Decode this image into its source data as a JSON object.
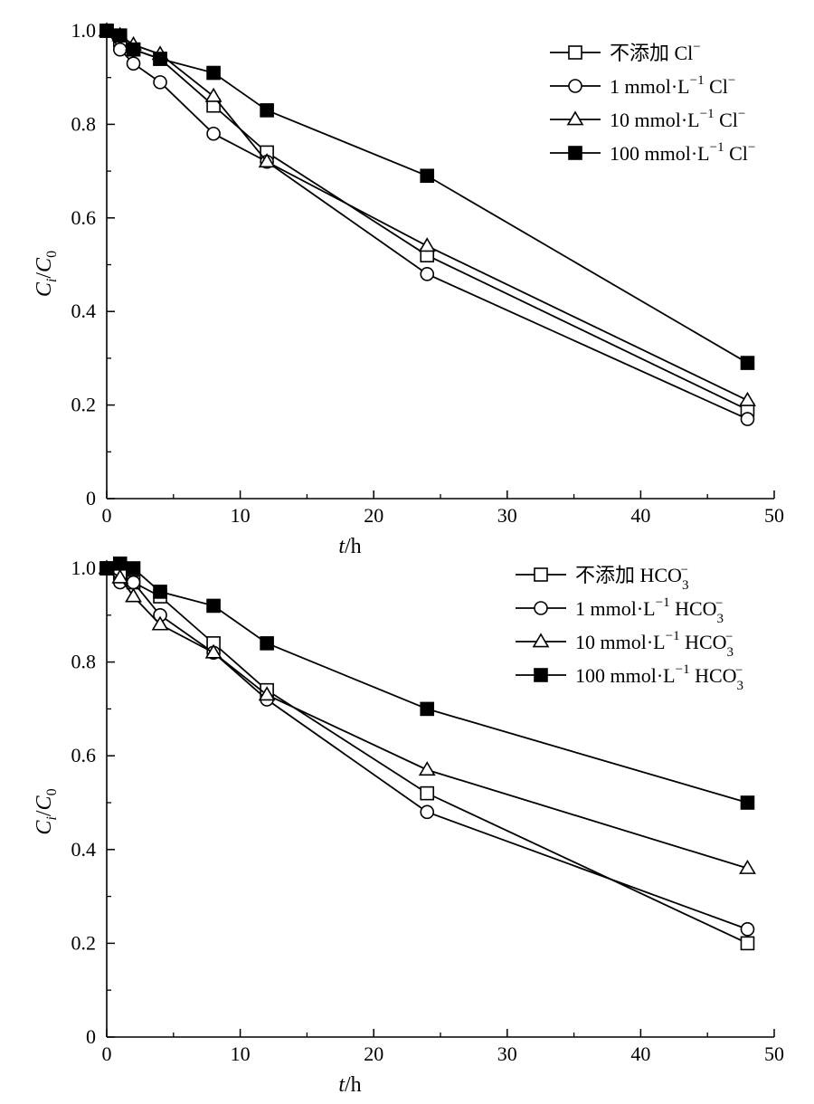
{
  "chart_data": [
    {
      "type": "line",
      "title": "",
      "xlabel": "t/h",
      "xlabel_italic": "t",
      "xlabel_unit": "/h",
      "ylabel": "Ci/C0",
      "xlim": [
        0,
        50
      ],
      "ylim": [
        0,
        1.0
      ],
      "xticks": [
        "0",
        "10",
        "20",
        "30",
        "40",
        "50"
      ],
      "yticks": [
        "0",
        "0.2",
        "0.4",
        "0.6",
        "0.8",
        "1.0"
      ],
      "legend_position": "top-right",
      "series": [
        {
          "name": "不添加 Cl⁻",
          "legend_text": "不添加 Cl",
          "ion_suffix": "−",
          "marker": "open-square",
          "x": [
            0,
            1,
            2,
            4,
            8,
            12,
            24,
            48
          ],
          "y": [
            1.0,
            0.98,
            0.96,
            0.94,
            0.84,
            0.74,
            0.52,
            0.19
          ]
        },
        {
          "name": "1 mmol·L⁻¹ Cl⁻",
          "legend_text": "1 mmol·L",
          "exp": "−1",
          "ion": " Cl",
          "ion_suffix": "−",
          "marker": "open-circle",
          "x": [
            0,
            1,
            2,
            4,
            8,
            12,
            24,
            48
          ],
          "y": [
            1.0,
            0.96,
            0.93,
            0.89,
            0.78,
            0.72,
            0.48,
            0.17
          ]
        },
        {
          "name": "10 mmol·L⁻¹ Cl⁻",
          "legend_text": "10 mmol·L",
          "exp": "−1",
          "ion": " Cl",
          "ion_suffix": "−",
          "marker": "open-triangle",
          "x": [
            0,
            1,
            2,
            4,
            8,
            12,
            24,
            48
          ],
          "y": [
            1.0,
            0.99,
            0.97,
            0.95,
            0.86,
            0.72,
            0.54,
            0.21
          ]
        },
        {
          "name": "100 mmol·L⁻¹ Cl⁻",
          "legend_text": "100 mmol·L",
          "exp": "−1",
          "ion": " Cl",
          "ion_suffix": "−",
          "marker": "filled-square",
          "x": [
            0,
            1,
            2,
            4,
            8,
            12,
            24,
            48
          ],
          "y": [
            1.0,
            0.99,
            0.96,
            0.94,
            0.91,
            0.83,
            0.69,
            0.29
          ]
        }
      ]
    },
    {
      "type": "line",
      "title": "",
      "xlabel": "t/h",
      "xlabel_italic": "t",
      "xlabel_unit": "/h",
      "ylabel": "Ci/C0",
      "xlim": [
        0,
        50
      ],
      "ylim": [
        0,
        1.0
      ],
      "xticks": [
        "0",
        "10",
        "20",
        "30",
        "40",
        "50"
      ],
      "yticks": [
        "0",
        "0.2",
        "0.4",
        "0.6",
        "0.8",
        "1.0"
      ],
      "legend_position": "top-right",
      "series": [
        {
          "name": "不添加 HCO₃⁻",
          "legend_text": "不添加 HCO",
          "ion_sub": "3",
          "ion_suffix": "−",
          "marker": "open-square",
          "x": [
            0,
            1,
            2,
            4,
            8,
            12,
            24,
            48
          ],
          "y": [
            1.0,
            0.99,
            0.97,
            0.94,
            0.84,
            0.74,
            0.52,
            0.2
          ]
        },
        {
          "name": "1 mmol·L⁻¹ HCO₃⁻",
          "legend_text": "1 mmol·L",
          "exp": "−1",
          "ion": " HCO",
          "ion_sub": "3",
          "ion_suffix": "−",
          "marker": "open-circle",
          "x": [
            0,
            1,
            2,
            4,
            8,
            12,
            24,
            48
          ],
          "y": [
            1.0,
            0.97,
            0.97,
            0.9,
            0.82,
            0.72,
            0.48,
            0.23
          ]
        },
        {
          "name": "10 mmol·L⁻¹ HCO₃⁻",
          "legend_text": "10 mmol·L",
          "exp": "−1",
          "ion": " HCO",
          "ion_sub": "3",
          "ion_suffix": "−",
          "marker": "open-triangle",
          "x": [
            0,
            1,
            2,
            4,
            8,
            12,
            24,
            48
          ],
          "y": [
            1.0,
            0.98,
            0.94,
            0.88,
            0.82,
            0.73,
            0.57,
            0.36
          ]
        },
        {
          "name": "100 mmol·L⁻¹ HCO₃⁻",
          "legend_text": "100 mmol·L",
          "exp": "−1",
          "ion": " HCO",
          "ion_sub": "3",
          "ion_suffix": "−",
          "marker": "filled-square",
          "x": [
            0,
            1,
            2,
            4,
            8,
            12,
            24,
            48
          ],
          "y": [
            1.0,
            1.01,
            1.0,
            0.95,
            0.92,
            0.84,
            0.7,
            0.5
          ]
        }
      ]
    }
  ]
}
